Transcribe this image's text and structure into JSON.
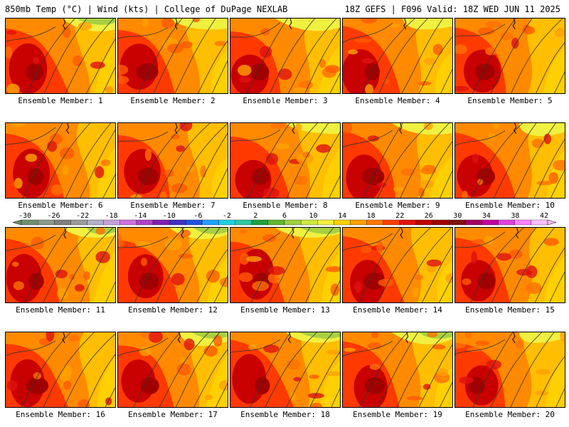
{
  "header": {
    "left": "850mb Temp (°C) | Wind (kts) | College of DuPage NEXLAB",
    "right": "18Z GEFS | F096 Valid: 18Z WED JUN 11 2025"
  },
  "members": [
    {
      "label": "Ensemble Member: 1"
    },
    {
      "label": "Ensemble Member: 2"
    },
    {
      "label": "Ensemble Member: 3"
    },
    {
      "label": "Ensemble Member: 4"
    },
    {
      "label": "Ensemble Member: 5"
    },
    {
      "label": "Ensemble Member: 6"
    },
    {
      "label": "Ensemble Member: 7"
    },
    {
      "label": "Ensemble Member: 8"
    },
    {
      "label": "Ensemble Member: 9"
    },
    {
      "label": "Ensemble Member: 10"
    },
    {
      "label": "Ensemble Member: 11"
    },
    {
      "label": "Ensemble Member: 12"
    },
    {
      "label": "Ensemble Member: 13"
    },
    {
      "label": "Ensemble Member: 14"
    },
    {
      "label": "Ensemble Member: 15"
    },
    {
      "label": "Ensemble Member: 16"
    },
    {
      "label": "Ensemble Member: 17"
    },
    {
      "label": "Ensemble Member: 18"
    },
    {
      "label": "Ensemble Member: 19"
    },
    {
      "label": "Ensemble Member: 20"
    }
  ],
  "colorbar": {
    "ticks": [
      "-30",
      "-26",
      "-22",
      "-18",
      "-14",
      "-10",
      "-6",
      "-2",
      "2",
      "6",
      "10",
      "14",
      "18",
      "22",
      "26",
      "30",
      "34",
      "38",
      "42"
    ],
    "colors": [
      "#6e8f6e",
      "#8a9a8a",
      "#7f7f7f",
      "#9a9a9a",
      "#b0b0c8",
      "#c8a0d8",
      "#d070e0",
      "#b040c8",
      "#8020b0",
      "#4030c0",
      "#2050e0",
      "#20a0ff",
      "#20d0e0",
      "#30c8a0",
      "#20a040",
      "#60b830",
      "#a0d040",
      "#d0e840",
      "#f0f040",
      "#ffd000",
      "#ffa000",
      "#ff7800",
      "#ff4000",
      "#e01010",
      "#c00000",
      "#a00000",
      "#801010",
      "#a00060",
      "#c000a0",
      "#e040e0",
      "#ff80ff",
      "#ffc0ff"
    ]
  }
}
